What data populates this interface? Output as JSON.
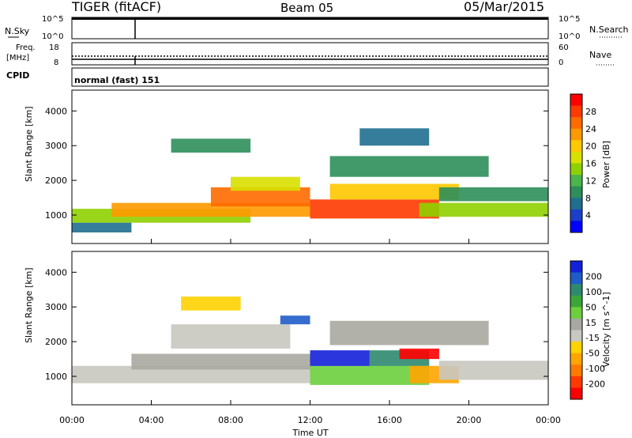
{
  "header": {
    "station": "TIGER (fitACF)",
    "beam": "Beam 05",
    "date": "05/Mar/2015"
  },
  "top_panels": {
    "nsky_label": "N.Sky",
    "nsky_ticks": [
      "10^5",
      "10^0"
    ],
    "nsearch_label": "N.Search",
    "nsearch_ticks": [
      "10^5",
      "10^0"
    ],
    "freq_label_1": "Freq.",
    "freq_label_2": "[MHz]",
    "freq_ticks": [
      "18",
      "8"
    ],
    "nave_label": "Nave",
    "nave_ticks": [
      "60",
      "0"
    ],
    "cpid_label": "CPID",
    "cpid_value": "normal (fast) 151"
  },
  "axes": {
    "xlabel": "Time UT",
    "xticks": [
      "00:00",
      "04:00",
      "08:00",
      "12:00",
      "16:00",
      "20:00",
      "00:00"
    ],
    "ylabel_power": "Slant Range [km]",
    "ylabel_velocity": "Slant Range [km]",
    "yticks": [
      "4000",
      "3000",
      "2000",
      "1000"
    ]
  },
  "colorbars": {
    "power": {
      "label": "Power [dB]",
      "ticks": [
        "28",
        "24",
        "20",
        "16",
        "12",
        "8",
        "4"
      ],
      "colors": [
        "#ff0000",
        "#ff3a00",
        "#ff6a00",
        "#ff9900",
        "#ffc800",
        "#d8e000",
        "#8fd000",
        "#4ab54a",
        "#2e8e5a",
        "#1f6f8f",
        "#1a3fc8",
        "#0000ff"
      ]
    },
    "velocity": {
      "label": "Velocity [m s^-1]",
      "ticks": [
        "200",
        "100",
        "50",
        "15",
        "-15",
        "-50",
        "-100",
        "-200"
      ],
      "colors": [
        "#1420d8",
        "#1f5cc8",
        "#2e8a6e",
        "#3aa63a",
        "#6ccf3c",
        "#a8a8a0",
        "#c8c8c0",
        "#ffd200",
        "#ffa500",
        "#ff7a00",
        "#ff3a00",
        "#ff0000"
      ]
    }
  },
  "chart_data": [
    {
      "type": "heatmap",
      "title": "Power",
      "xlabel": "Time UT",
      "ylabel": "Slant Range [km]",
      "x_unit": "hours UT",
      "xlim": [
        0,
        24
      ],
      "ylim": [
        180,
        4600
      ],
      "colorbar_range": [
        0,
        30
      ],
      "colorbar_label": "Power [dB]",
      "bands": [
        {
          "t0": 0,
          "t1": 9,
          "r0": 780,
          "r1": 1180,
          "value": 14
        },
        {
          "t0": 2,
          "t1": 12,
          "r0": 950,
          "r1": 1350,
          "value": 22
        },
        {
          "t0": 7,
          "t1": 12,
          "r0": 1250,
          "r1": 1800,
          "value": 24
        },
        {
          "t0": 8,
          "t1": 11.5,
          "r0": 1700,
          "r1": 2100,
          "value": 16
        },
        {
          "t0": 12,
          "t1": 18.5,
          "r0": 900,
          "r1": 1450,
          "value": 26
        },
        {
          "t0": 13,
          "t1": 19.5,
          "r0": 1450,
          "r1": 1900,
          "value": 18
        },
        {
          "t0": 17.5,
          "t1": 24,
          "r0": 950,
          "r1": 1350,
          "value": 15
        },
        {
          "t0": 18.5,
          "t1": 24,
          "r0": 1400,
          "r1": 1800,
          "value": 10
        },
        {
          "t0": 5,
          "t1": 9,
          "r0": 2800,
          "r1": 3200,
          "value": 8
        },
        {
          "t0": 13,
          "t1": 21,
          "r0": 2100,
          "r1": 2700,
          "value": 9
        },
        {
          "t0": 14.5,
          "t1": 18,
          "r0": 3000,
          "r1": 3500,
          "value": 6
        },
        {
          "t0": 0,
          "t1": 3,
          "r0": 500,
          "r1": 780,
          "value": 6
        }
      ]
    },
    {
      "type": "heatmap",
      "title": "Velocity",
      "xlabel": "Time UT",
      "ylabel": "Slant Range [km]",
      "x_unit": "hours UT",
      "xlim": [
        0,
        24
      ],
      "ylim": [
        180,
        4600
      ],
      "colorbar_range": [
        -200,
        200
      ],
      "colorbar_label": "Velocity [m s^-1]",
      "bands": [
        {
          "t0": 0,
          "t1": 12,
          "r0": 800,
          "r1": 1300,
          "value": -5
        },
        {
          "t0": 3,
          "t1": 12,
          "r0": 1200,
          "r1": 1650,
          "value": 5
        },
        {
          "t0": 12,
          "t1": 18,
          "r0": 750,
          "r1": 1300,
          "value": 40
        },
        {
          "t0": 12,
          "t1": 15,
          "r0": 1300,
          "r1": 1750,
          "value": 180
        },
        {
          "t0": 15,
          "t1": 18,
          "r0": 1300,
          "r1": 1750,
          "value": 110
        },
        {
          "t0": 16.5,
          "t1": 18.5,
          "r0": 1500,
          "r1": 1800,
          "value": -180
        },
        {
          "t0": 17,
          "t1": 19.5,
          "r0": 800,
          "r1": 1300,
          "value": -80
        },
        {
          "t0": 18.5,
          "t1": 24,
          "r0": 900,
          "r1": 1450,
          "value": 0
        },
        {
          "t0": 5,
          "t1": 11,
          "r0": 1800,
          "r1": 2500,
          "value": -10
        },
        {
          "t0": 13,
          "t1": 21,
          "r0": 1900,
          "r1": 2600,
          "value": 10
        },
        {
          "t0": 10.5,
          "t1": 12,
          "r0": 2500,
          "r1": 2750,
          "value": 150
        },
        {
          "t0": 5.5,
          "t1": 8.5,
          "r0": 2900,
          "r1": 3300,
          "value": -60
        }
      ]
    }
  ]
}
